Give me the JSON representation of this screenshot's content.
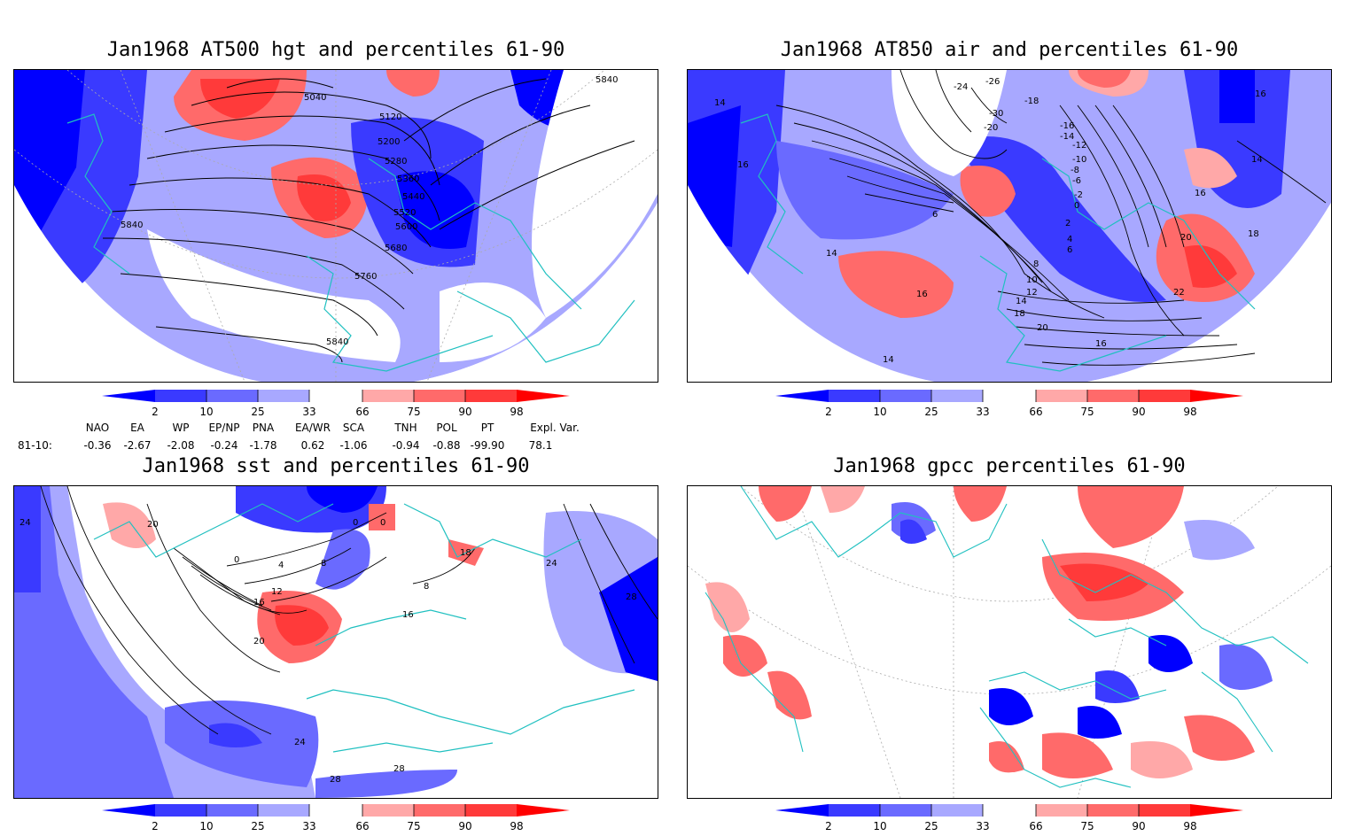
{
  "panels": [
    {
      "id": "p1",
      "title": "Jan1968 AT500 hgt and percentiles 61-90",
      "contour_labels": [
        "5040",
        "5120",
        "5200",
        "5280",
        "5360",
        "5440",
        "5520",
        "5600",
        "5680",
        "5760",
        "5840",
        "5840",
        "5840",
        "5840"
      ]
    },
    {
      "id": "p2",
      "title": "Jan1968 AT850 air and percentiles 61-90",
      "contour_labels": [
        "-26",
        "-24",
        "-18",
        "-30",
        "-20",
        "-16",
        "-14",
        "-12",
        "-10",
        "-8",
        "-6",
        "-2",
        "0",
        "2",
        "4",
        "6",
        "8",
        "10",
        "12",
        "14",
        "14",
        "14",
        "14",
        "16",
        "16",
        "16",
        "16",
        "18",
        "18",
        "20",
        "20",
        "22",
        "16",
        "14",
        "6"
      ]
    },
    {
      "id": "p3",
      "title": "Jan1968 sst and percentiles 61-90",
      "contour_labels": [
        "24",
        "20",
        "0",
        "0",
        "4",
        "8",
        "12",
        "16",
        "20",
        "24",
        "28",
        "28",
        "24",
        "28",
        "8",
        "18",
        "16",
        "0"
      ]
    },
    {
      "id": "p4",
      "title": "Jan1968 gpcc percentiles 61-90",
      "contour_labels": []
    }
  ],
  "colorbar": {
    "labels": [
      "2",
      "10",
      "25",
      "33",
      "66",
      "75",
      "90",
      "98"
    ],
    "colors": [
      "#0000ff",
      "#3a3aff",
      "#6a6aff",
      "#a8a8ff",
      "#ffffff",
      "#ffa8a8",
      "#ff6a6a",
      "#ff3a3a",
      "#ff0000"
    ]
  },
  "indices": {
    "headers": [
      "NAO",
      "EA",
      "WP",
      "EP/NP",
      "PNA",
      "EA/WR",
      "SCA",
      "TNH",
      "POL",
      "PT",
      "Expl. Var."
    ],
    "row_label": "81-10:",
    "values": [
      "-0.36",
      "-2.67",
      "-2.08",
      "-0.24",
      "-1.78",
      "0.62",
      "-1.06",
      "-0.94",
      "-0.88",
      "-99.90",
      "78.1"
    ]
  },
  "colors": {
    "coast": "#20c0c0",
    "contour": "#000000",
    "grid": "#aaaaaa"
  }
}
